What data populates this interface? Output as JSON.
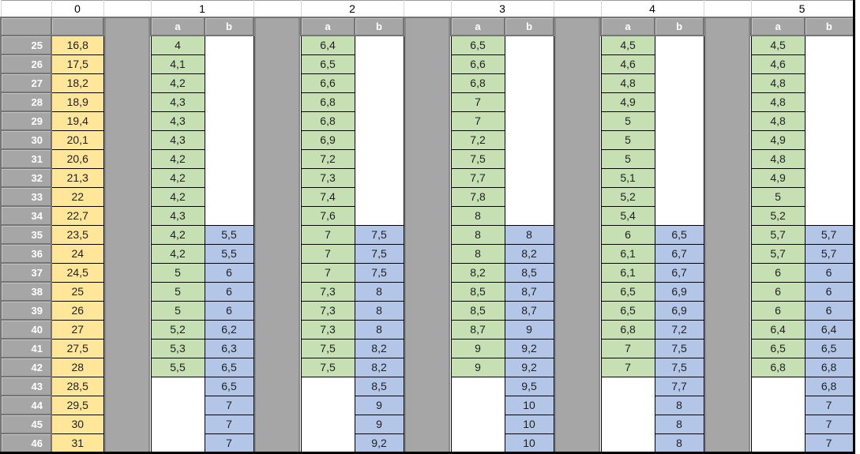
{
  "top_headers": [
    "0",
    "1",
    "2",
    "3",
    "4",
    "5"
  ],
  "sub_headers": [
    "a",
    "b"
  ],
  "row_headers": [
    "25",
    "26",
    "27",
    "28",
    "29",
    "30",
    "31",
    "32",
    "33",
    "34",
    "35",
    "36",
    "37",
    "38",
    "39",
    "40",
    "41",
    "42",
    "43",
    "44",
    "45",
    "46"
  ],
  "col0": [
    "16,8",
    "17,5",
    "18,2",
    "18,9",
    "19,4",
    "20,1",
    "20,6",
    "21,3",
    "22",
    "22,7",
    "23,5",
    "24",
    "24,5",
    "25",
    "26",
    "27",
    "27,5",
    "28",
    "28,5",
    "29,5",
    "30",
    "31"
  ],
  "groups": [
    {
      "label": "1",
      "a": [
        "4",
        "4,1",
        "4,2",
        "4,3",
        "4,3",
        "4,3",
        "4,2",
        "4,2",
        "4,2",
        "4,3",
        "4,2",
        "4,2",
        "5",
        "5",
        "5",
        "5,2",
        "5,3",
        "5,5",
        "",
        "",
        "",
        ""
      ],
      "b": [
        "",
        "",
        "",
        "",
        "",
        "",
        "",
        "",
        "",
        "",
        "5,5",
        "5,5",
        "6",
        "6",
        "6",
        "6,2",
        "6,3",
        "6,5",
        "6,5",
        "7",
        "7",
        "7"
      ]
    },
    {
      "label": "2",
      "a": [
        "6,4",
        "6,5",
        "6,6",
        "6,8",
        "6,8",
        "6,9",
        "7,2",
        "7,3",
        "7,4",
        "7,6",
        "7",
        "7",
        "7",
        "7,3",
        "7,3",
        "7,3",
        "7,5",
        "7,5",
        "",
        "",
        "",
        ""
      ],
      "b": [
        "",
        "",
        "",
        "",
        "",
        "",
        "",
        "",
        "",
        "",
        "7,5",
        "7,5",
        "7,5",
        "8",
        "8",
        "8",
        "8,2",
        "8,2",
        "8,5",
        "9",
        "9",
        "9,2"
      ]
    },
    {
      "label": "3",
      "a": [
        "6,5",
        "6,6",
        "6,8",
        "7",
        "7",
        "7,2",
        "7,5",
        "7,7",
        "7,8",
        "8",
        "8",
        "8",
        "8,2",
        "8,5",
        "8,5",
        "8,7",
        "9",
        "9",
        "",
        "",
        "",
        ""
      ],
      "b": [
        "",
        "",
        "",
        "",
        "",
        "",
        "",
        "",
        "",
        "",
        "8",
        "8,2",
        "8,5",
        "8,7",
        "8,7",
        "9",
        "9,2",
        "9,2",
        "9,5",
        "10",
        "10",
        "10"
      ]
    },
    {
      "label": "4",
      "a": [
        "4,5",
        "4,6",
        "4,8",
        "4,9",
        "5",
        "5",
        "5",
        "5,1",
        "5,2",
        "5,4",
        "6",
        "6,1",
        "6,1",
        "6,5",
        "6,5",
        "6,8",
        "7",
        "7",
        "",
        "",
        "",
        ""
      ],
      "b": [
        "",
        "",
        "",
        "",
        "",
        "",
        "",
        "",
        "",
        "",
        "6,5",
        "6,7",
        "6,7",
        "6,9",
        "6,9",
        "7,2",
        "7,5",
        "7,5",
        "7,7",
        "8",
        "8",
        "8"
      ]
    },
    {
      "label": "5",
      "a": [
        "4,5",
        "4,6",
        "4,8",
        "4,8",
        "4,8",
        "4,9",
        "4,8",
        "4,9",
        "5",
        "5,2",
        "5,7",
        "5,7",
        "6",
        "6",
        "6",
        "6,4",
        "6,5",
        "6,8",
        "",
        "",
        "",
        ""
      ],
      "b": [
        "",
        "",
        "",
        "",
        "",
        "",
        "",
        "",
        "",
        "",
        "5,7",
        "5,7",
        "6",
        "6",
        "6",
        "6,4",
        "6,5",
        "6,8",
        "6,8",
        "7",
        "7",
        "7"
      ]
    }
  ],
  "colors": {
    "col0_fill": "#FFE699",
    "a_fill": "#C6E0B4",
    "b_fill": "#B4C6E7",
    "header_fill": "#A6A6A6",
    "header_text": "#FFFFFF",
    "grid_line": "#000000",
    "light_grid_line": "#D6D6D6"
  }
}
